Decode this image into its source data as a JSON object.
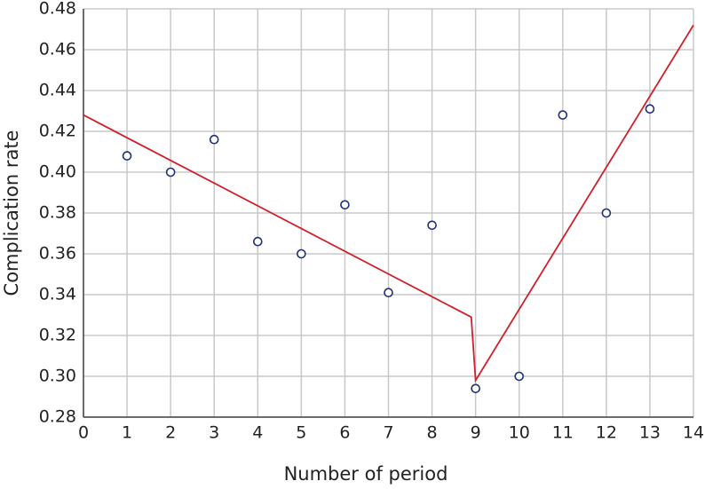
{
  "chart_data": {
    "type": "scatter",
    "x_label": "Number of period",
    "y_label": "Complication rate",
    "xlim": [
      0,
      14
    ],
    "xticks": [
      0,
      1,
      2,
      3,
      4,
      5,
      6,
      7,
      8,
      9,
      10,
      11,
      12,
      13,
      14
    ],
    "ylim": [
      0.28,
      0.48
    ],
    "yticks": [
      0.28,
      {
        "value": 0.3,
        "label": "0.30"
      },
      0.32,
      0.34,
      0.36,
      0.38,
      {
        "value": 0.4,
        "label": "0.40"
      },
      0.42,
      0.44,
      0.46,
      0.48
    ],
    "grid": true,
    "series": [
      {
        "style": "markers",
        "color": "#1f2f7a",
        "x": [
          1,
          2,
          3,
          4,
          5,
          6,
          7,
          8,
          9,
          10,
          11,
          12,
          13
        ],
        "values": [
          0.408,
          0.4,
          0.416,
          0.366,
          0.36,
          0.384,
          0.341,
          0.374,
          0.294,
          0.3,
          0.428,
          0.38,
          0.431
        ]
      },
      {
        "style": "line",
        "color": "#d0202a",
        "x": [
          0,
          8.9,
          9,
          14
        ],
        "values": [
          0.428,
          0.329,
          0.298,
          0.472
        ]
      }
    ]
  }
}
